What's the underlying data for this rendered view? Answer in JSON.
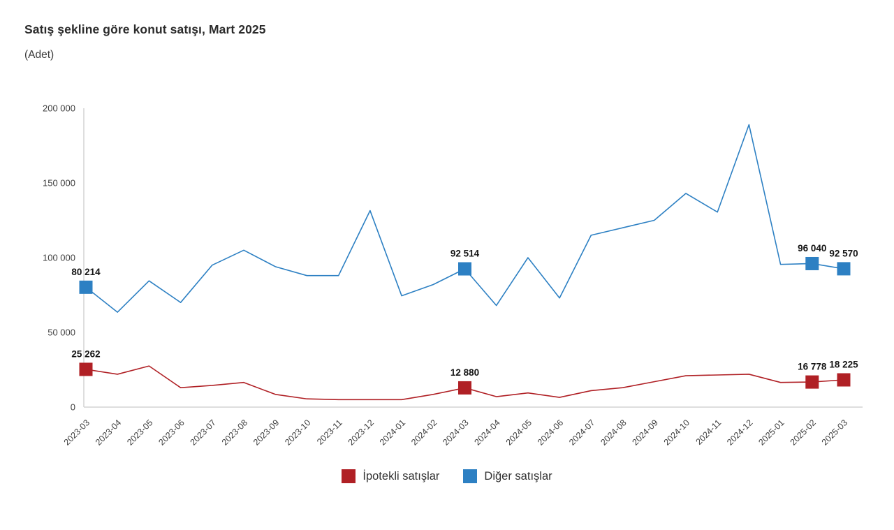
{
  "title": "Satış şekline göre konut satışı, Mart 2025",
  "subtitle": "(Adet)",
  "colors": {
    "mortgaged": "#b02025",
    "other": "#2d80c3",
    "axis_line": "#d4d4d4",
    "tick_text": "#404040",
    "data_label_text": "#141414"
  },
  "chart_data": {
    "type": "line",
    "title": "Satış şekline göre konut satışı, Mart 2025",
    "unit_label": "(Adet)",
    "categories": [
      "2023-03",
      "2023-04",
      "2023-05",
      "2023-06",
      "2023-07",
      "2023-08",
      "2023-09",
      "2023-10",
      "2023-11",
      "2023-12",
      "2024-01",
      "2024-02",
      "2024-03",
      "2024-04",
      "2024-05",
      "2024-06",
      "2024-07",
      "2024-08",
      "2024-09",
      "2024-10",
      "2024-11",
      "2024-12",
      "2025-01",
      "2025-02",
      "2025-03"
    ],
    "series": [
      {
        "name": "Diğer satışlar",
        "color_key": "other",
        "values": [
          80214,
          63500,
          84500,
          70000,
          95000,
          105000,
          94000,
          88000,
          88000,
          131500,
          74500,
          82000,
          92514,
          68000,
          100000,
          73000,
          115000,
          120000,
          125000,
          143000,
          130500,
          189000,
          95500,
          96040,
          92570
        ],
        "labeled_points": [
          {
            "i": 0,
            "text": "80 214"
          },
          {
            "i": 12,
            "text": "92 514"
          },
          {
            "i": 23,
            "text": "96 040"
          },
          {
            "i": 24,
            "text": "92 570"
          }
        ]
      },
      {
        "name": "İpotekli satışlar",
        "color_key": "mortgaged",
        "values": [
          25262,
          22000,
          27500,
          13000,
          14500,
          16500,
          8500,
          5500,
          5000,
          5000,
          5000,
          8500,
          12880,
          7000,
          9500,
          6500,
          11000,
          13000,
          17000,
          21000,
          21500,
          22000,
          16500,
          16778,
          18225
        ],
        "labeled_points": [
          {
            "i": 0,
            "text": "25 262"
          },
          {
            "i": 12,
            "text": "12 880"
          },
          {
            "i": 23,
            "text": "16 778"
          },
          {
            "i": 24,
            "text": "18 225"
          }
        ]
      }
    ],
    "ylim": [
      0,
      200000
    ],
    "yticks": [
      0,
      50000,
      100000,
      150000,
      200000
    ],
    "ytick_labels": [
      "0",
      "50 000",
      "100 000",
      "150 000",
      "200 000"
    ],
    "xlabel": "",
    "ylabel": "",
    "grid": false,
    "legend_position": "bottom"
  },
  "legend": {
    "items": [
      {
        "label": "İpotekli satışlar",
        "color_key": "mortgaged"
      },
      {
        "label": "Diğer satışlar",
        "color_key": "other"
      }
    ]
  }
}
